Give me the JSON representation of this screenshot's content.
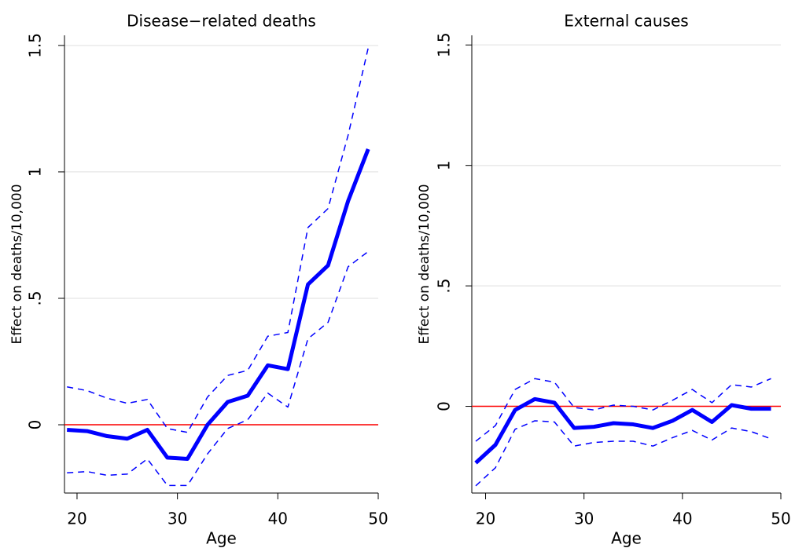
{
  "chart_data": [
    {
      "type": "line",
      "title": "Disease−related deaths",
      "x_label": "Age",
      "y_label": "Effect on deaths/10,000",
      "x": [
        19,
        21,
        23,
        25,
        27,
        29,
        31,
        33,
        35,
        37,
        39,
        41,
        43,
        45,
        47,
        49
      ],
      "series": [
        {
          "color": "#0000ff",
          "dashed": false,
          "values": [
            -0.02,
            -0.025,
            -0.045,
            -0.055,
            -0.02,
            -0.13,
            -0.135,
            0,
            0.09,
            0.115,
            0.235,
            0.22,
            0.555,
            0.63,
            0.885,
            1.09
          ]
        },
        {
          "color": "#0000ff",
          "dashed": true,
          "values": [
            0.15,
            0.135,
            0.105,
            0.085,
            0.1,
            -0.015,
            -0.03,
            0.11,
            0.195,
            0.215,
            0.35,
            0.365,
            0.78,
            0.855,
            1.145,
            1.49
          ]
        },
        {
          "color": "#0000ff",
          "dashed": true,
          "values": [
            -0.19,
            -0.185,
            -0.2,
            -0.195,
            -0.135,
            -0.24,
            -0.24,
            -0.115,
            -0.015,
            0.02,
            0.125,
            0.07,
            0.34,
            0.405,
            0.625,
            0.685
          ]
        }
      ],
      "reference_line": 0,
      "reference_color": "#ff0000",
      "xlim": [
        18.75,
        50
      ],
      "xticks": [
        20,
        30,
        40,
        50
      ],
      "ylim": [
        -0.27,
        1.54
      ],
      "yticks": [
        0,
        {
          "value": 0.5,
          "label": ".5"
        },
        1,
        1.5
      ],
      "grid": true
    },
    {
      "type": "line",
      "title": "External causes",
      "x_label": "Age",
      "y_label": "Effect on deaths/10,000",
      "x": [
        19,
        21,
        23,
        25,
        27,
        29,
        31,
        33,
        35,
        37,
        39,
        41,
        43,
        45,
        47,
        49
      ],
      "series": [
        {
          "color": "#0000ff",
          "dashed": false,
          "values": [
            -0.235,
            -0.16,
            -0.015,
            0.03,
            0.015,
            -0.09,
            -0.085,
            -0.07,
            -0.075,
            -0.09,
            -0.06,
            -0.015,
            -0.065,
            0.005,
            -0.01,
            -0.01
          ]
        },
        {
          "color": "#0000ff",
          "dashed": true,
          "values": [
            -0.145,
            -0.08,
            0.07,
            0.115,
            0.1,
            -0.005,
            -0.015,
            0.005,
            0,
            -0.015,
            0.025,
            0.07,
            0.015,
            0.09,
            0.08,
            0.115
          ]
        },
        {
          "color": "#0000ff",
          "dashed": true,
          "values": [
            -0.33,
            -0.255,
            -0.095,
            -0.06,
            -0.065,
            -0.165,
            -0.15,
            -0.145,
            -0.145,
            -0.165,
            -0.13,
            -0.1,
            -0.14,
            -0.09,
            -0.105,
            -0.135
          ]
        }
      ],
      "reference_line": 0,
      "reference_color": "#ff0000",
      "xlim": [
        18.6,
        50
      ],
      "xticks": [
        20,
        30,
        40,
        50
      ],
      "ylim": [
        -0.36,
        1.54
      ],
      "yticks": [
        0,
        {
          "value": 0.5,
          "label": ".5"
        },
        1,
        1.5
      ],
      "grid": true
    }
  ]
}
